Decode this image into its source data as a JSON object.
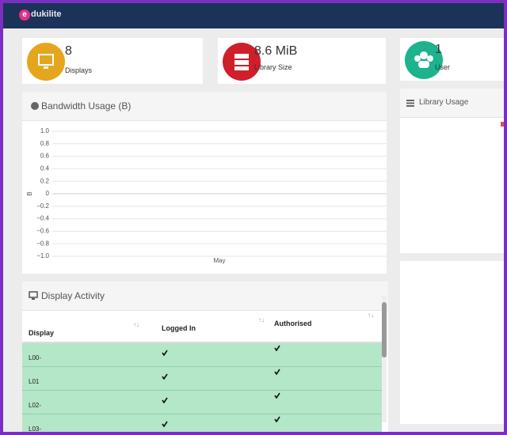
{
  "header": {
    "logo": "dukilite"
  },
  "cards": [
    {
      "value": "8",
      "label": "Displays"
    },
    {
      "value": "8.6 MiB",
      "label": "Library Size"
    },
    {
      "value": "1",
      "label": "User"
    }
  ],
  "bandwidth": {
    "title": "Bandwidth Usage (B)",
    "chart_data": {
      "type": "line",
      "categories": [
        "May"
      ],
      "y_label": "B",
      "ylim": [
        -1,
        1
      ],
      "yticks": [
        {
          "value": -1,
          "label": "−1.0"
        },
        {
          "value": -0.8,
          "label": "−0.8"
        },
        {
          "value": -0.6,
          "label": "−0.6"
        },
        {
          "value": -0.4,
          "label": "−0.4"
        },
        {
          "value": -0.2,
          "label": "−0.2"
        },
        0,
        0.2,
        0.4,
        0.6,
        0.8,
        {
          "value": 1,
          "label": "1.0"
        }
      ]
    }
  },
  "library": {
    "title": "Library Usage"
  },
  "activity": {
    "title": "Display Activity",
    "table": {
      "columns": [
        "Display",
        "Logged In",
        "Authorised"
      ],
      "rows": [
        [
          "L00-"
        ],
        [
          "L01"
        ],
        [
          "L02-"
        ],
        [
          "L03-"
        ]
      ]
    }
  }
}
